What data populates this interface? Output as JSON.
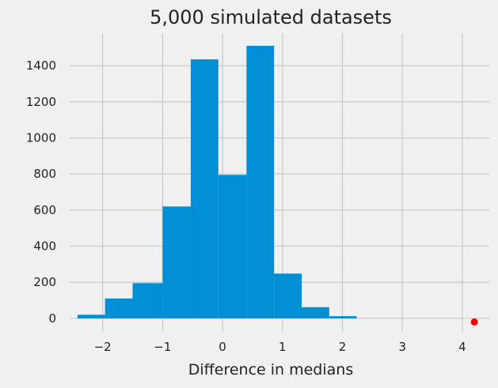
{
  "chart_data": {
    "type": "bar",
    "title": "5,000 simulated datasets",
    "xlabel": "Difference in medians",
    "ylabel": "",
    "grid": true,
    "xlim": [
      -2.55,
      4.45
    ],
    "ylim": [
      -75,
      1580
    ],
    "x_ticks": [
      -2,
      -1,
      0,
      1,
      2,
      3,
      4
    ],
    "x_tick_labels": [
      "−2",
      "−1",
      "0",
      "1",
      "2",
      "3",
      "4"
    ],
    "y_ticks": [
      0,
      200,
      400,
      600,
      800,
      1000,
      1200,
      1400
    ],
    "y_tick_labels": [
      "0",
      "200",
      "400",
      "600",
      "800",
      "1000",
      "1200",
      "1400"
    ],
    "bins": [
      {
        "x0": -2.42,
        "x1": -1.96,
        "count": 20
      },
      {
        "x0": -1.96,
        "x1": -1.5,
        "count": 110
      },
      {
        "x0": -1.5,
        "x1": -1.0,
        "count": 195
      },
      {
        "x0": -1.0,
        "x1": -0.53,
        "count": 620
      },
      {
        "x0": -0.53,
        "x1": -0.07,
        "count": 1435
      },
      {
        "x0": -0.07,
        "x1": 0.4,
        "count": 795
      },
      {
        "x0": 0.4,
        "x1": 0.86,
        "count": 1510
      },
      {
        "x0": 0.86,
        "x1": 1.32,
        "count": 248
      },
      {
        "x0": 1.32,
        "x1": 1.78,
        "count": 62
      },
      {
        "x0": 1.78,
        "x1": 2.24,
        "count": 12
      }
    ],
    "marker": {
      "x": 4.2,
      "y": -20,
      "color": "#ff0000"
    },
    "bar_color": "#008fd5",
    "background_color": "#f0f0f0",
    "grid_color": "#cbcbcb"
  }
}
